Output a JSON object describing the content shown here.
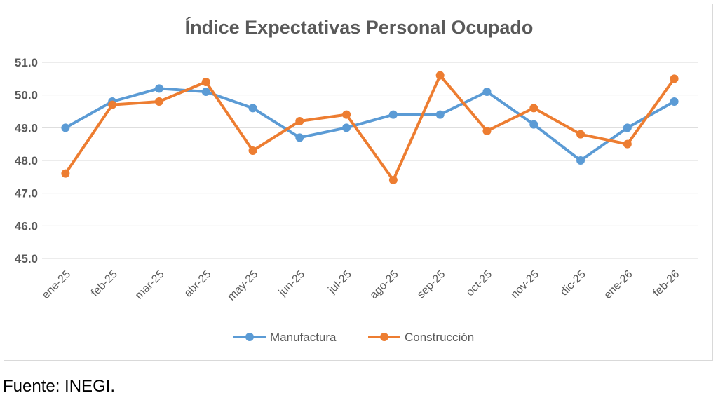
{
  "chart_data": {
    "type": "line",
    "title": "Índice Expectativas Personal Ocupado",
    "xlabel": "",
    "ylabel": "",
    "ylim": [
      45.0,
      51.0
    ],
    "yticks": [
      "45.0",
      "46.0",
      "47.0",
      "48.0",
      "49.0",
      "50.0",
      "51.0"
    ],
    "grid": true,
    "legend_position": "bottom",
    "categories": [
      "ene-25",
      "feb-25",
      "mar-25",
      "abr-25",
      "may-25",
      "jun-25",
      "jul-25",
      "ago-25",
      "sep-25",
      "oct-25",
      "nov-25",
      "dic-25",
      "ene-26",
      "feb-26"
    ],
    "series": [
      {
        "name": "Manufactura",
        "color": "#5B9BD5",
        "values": [
          49.0,
          49.8,
          50.2,
          50.1,
          49.6,
          48.7,
          49.0,
          49.4,
          49.4,
          50.1,
          49.1,
          48.0,
          49.0,
          49.8
        ]
      },
      {
        "name": "Construcción",
        "color": "#ED7D31",
        "values": [
          47.6,
          49.7,
          49.8,
          50.4,
          48.3,
          49.2,
          49.4,
          47.4,
          50.6,
          48.9,
          49.6,
          48.8,
          48.5,
          50.5
        ]
      }
    ]
  },
  "source": "Fuente: INEGI."
}
